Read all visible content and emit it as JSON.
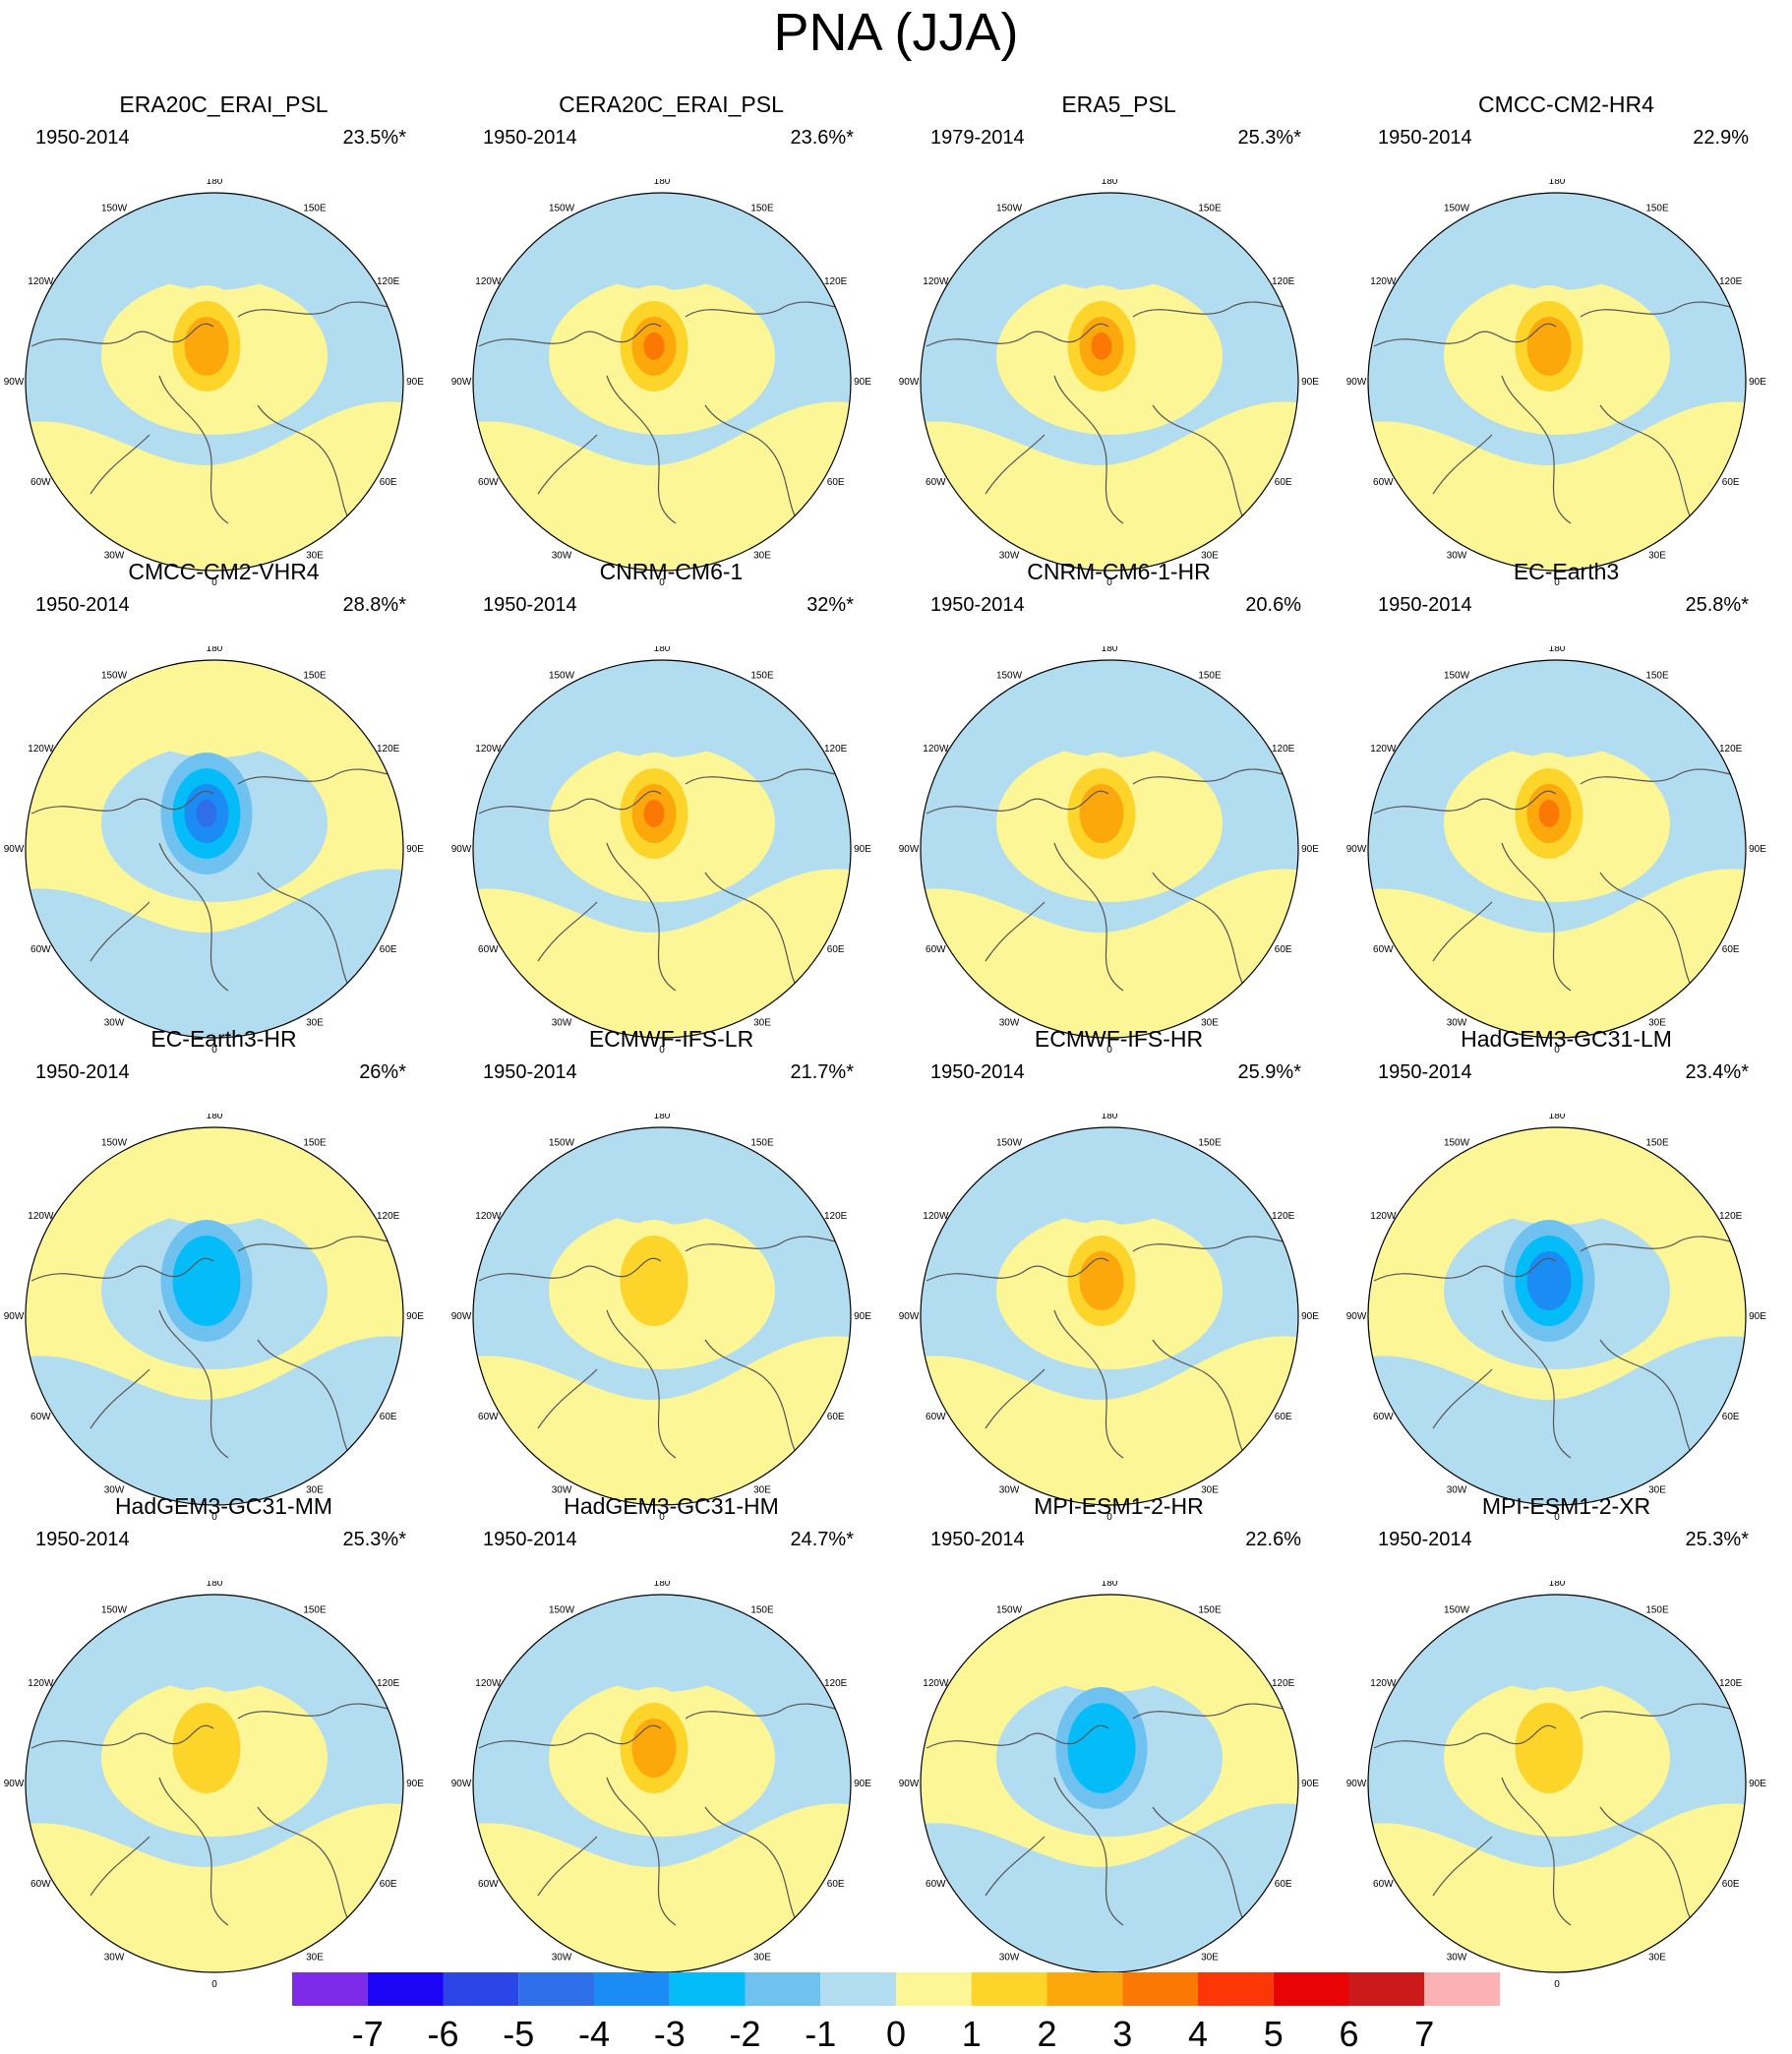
{
  "title": "PNA (JJA)",
  "chart_data": {
    "type": "heatmap",
    "projection": "polar stereographic, Northern Hemisphere",
    "longitude_labels": [
      "180",
      "150W",
      "150E",
      "120W",
      "120E",
      "90W",
      "90E",
      "60W",
      "60E",
      "30W",
      "30E",
      "0"
    ],
    "colorbar": {
      "labels": [
        "-7",
        "-6",
        "-5",
        "-4",
        "-3",
        "-2",
        "-1",
        "0",
        "1",
        "2",
        "3",
        "4",
        "5",
        "6",
        "7"
      ],
      "colors": [
        "#7d2be8",
        "#1c04f5",
        "#2c45e6",
        "#2e6ee8",
        "#1c8cf5",
        "#04bcf7",
        "#6fc2f0",
        "#b2dcf0",
        "#fcf696",
        "#fcd42a",
        "#fca80c",
        "#fc7804",
        "#fc3604",
        "#e80404",
        "#cc1a1a",
        "#fcb2b2"
      ]
    },
    "panels": [
      {
        "name": "ERA20C_ERAI_PSL",
        "period": "1950-2014",
        "variance": "23.5%*",
        "sign": 1,
        "max_level": 3
      },
      {
        "name": "CERA20C_ERAI_PSL",
        "period": "1950-2014",
        "variance": "23.6%*",
        "sign": 1,
        "max_level": 4
      },
      {
        "name": "ERA5_PSL",
        "period": "1979-2014",
        "variance": "25.3%*",
        "sign": 1,
        "max_level": 4
      },
      {
        "name": "CMCC-CM2-HR4",
        "period": "1950-2014",
        "variance": "22.9%",
        "sign": 1,
        "max_level": 3
      },
      {
        "name": "CMCC-CM2-VHR4",
        "period": "1950-2014",
        "variance": "28.8%*",
        "sign": -1,
        "max_level": 4
      },
      {
        "name": "CNRM-CM6-1",
        "period": "1950-2014",
        "variance": "32%*",
        "sign": 1,
        "max_level": 4
      },
      {
        "name": "CNRM-CM6-1-HR",
        "period": "1950-2014",
        "variance": "20.6%",
        "sign": 1,
        "max_level": 3
      },
      {
        "name": "EC-Earth3",
        "period": "1950-2014",
        "variance": "25.8%*",
        "sign": 1,
        "max_level": 4
      },
      {
        "name": "EC-Earth3-HR",
        "period": "1950-2014",
        "variance": "26%*",
        "sign": -1,
        "max_level": 2
      },
      {
        "name": "ECMWF-IFS-LR",
        "period": "1950-2014",
        "variance": "21.7%*",
        "sign": 1,
        "max_level": 2
      },
      {
        "name": "ECMWF-IFS-HR",
        "period": "1950-2014",
        "variance": "25.9%*",
        "sign": 1,
        "max_level": 3
      },
      {
        "name": "HadGEM3-GC31-LM",
        "period": "1950-2014",
        "variance": "23.4%*",
        "sign": -1,
        "max_level": 3
      },
      {
        "name": "HadGEM3-GC31-MM",
        "period": "1950-2014",
        "variance": "25.3%*",
        "sign": 1,
        "max_level": 2
      },
      {
        "name": "HadGEM3-GC31-HM",
        "period": "1950-2014",
        "variance": "24.7%*",
        "sign": 1,
        "max_level": 3
      },
      {
        "name": "MPI-ESM1-2-HR",
        "period": "1950-2014",
        "variance": "22.6%",
        "sign": -1,
        "max_level": 2
      },
      {
        "name": "MPI-ESM1-2-XR",
        "period": "1950-2014",
        "variance": "25.3%*",
        "sign": 1,
        "max_level": 2
      }
    ]
  }
}
